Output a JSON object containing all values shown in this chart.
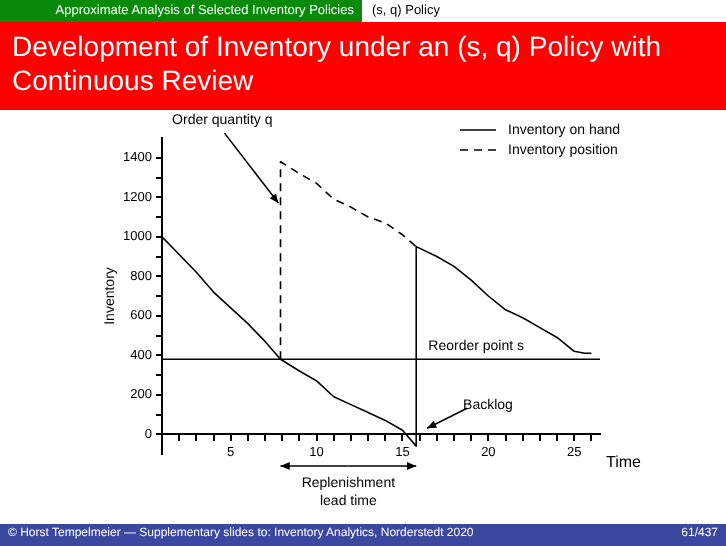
{
  "chart_data": {
    "type": "line",
    "title": "Development of Inventory under an (s, q) Policy with Continuous Review",
    "xlabel": "Time",
    "ylabel": "Inventory",
    "series": [
      {
        "name": "Inventory on hand",
        "color": "#000000",
        "line_style": "solid",
        "x": [
          1,
          2,
          3,
          4,
          5,
          6,
          7,
          7.9,
          9,
          10,
          11,
          12,
          13,
          14,
          15,
          15.8,
          15.8,
          17,
          18,
          19,
          20,
          21,
          22,
          23,
          24,
          25,
          25.6,
          26
        ],
        "values": [
          1000,
          910,
          820,
          720,
          640,
          560,
          470,
          380,
          320,
          270,
          190,
          150,
          110,
          70,
          20,
          -60,
          950,
          900,
          850,
          780,
          700,
          630,
          590,
          540,
          490,
          420,
          410,
          410
        ]
      },
      {
        "name": "Inventory position",
        "color": "#000000",
        "line_style": "dashed",
        "x": [
          7.9,
          7.9,
          9,
          10,
          11,
          12,
          13,
          14,
          15,
          15.8
        ],
        "values": [
          380,
          1380,
          1320,
          1270,
          1190,
          1150,
          1100,
          1070,
          1010,
          950
        ]
      }
    ],
    "xlim": [
      1,
      26.5
    ],
    "ylim": [
      -100,
      1500
    ],
    "xticks": [
      {
        "value": 1,
        "label": null
      },
      {
        "value": 2,
        "label": null
      },
      {
        "value": 3,
        "label": null
      },
      {
        "value": 4,
        "label": null
      },
      5,
      {
        "value": 6,
        "label": null
      },
      {
        "value": 7,
        "label": null
      },
      {
        "value": 8,
        "label": null
      },
      {
        "value": 9,
        "label": null
      },
      10,
      {
        "value": 11,
        "label": null
      },
      {
        "value": 12,
        "label": null
      },
      {
        "value": 13,
        "label": null
      },
      {
        "value": 14,
        "label": null
      },
      15,
      {
        "value": 16,
        "label": null
      },
      {
        "value": 17,
        "label": null
      },
      {
        "value": 18,
        "label": null
      },
      {
        "value": 19,
        "label": null
      },
      20,
      {
        "value": 21,
        "label": null
      },
      {
        "value": 22,
        "label": null
      },
      {
        "value": 23,
        "label": null
      },
      {
        "value": 24,
        "label": null
      },
      25,
      {
        "value": 26,
        "label": null
      }
    ],
    "yticks": [
      0,
      {
        "value": 100,
        "label": null
      },
      200,
      {
        "value": 300,
        "label": null
      },
      400,
      {
        "value": 500,
        "label": null
      },
      600,
      {
        "value": 700,
        "label": null
      },
      800,
      {
        "value": 900,
        "label": null
      },
      1000,
      {
        "value": 1100,
        "label": null
      },
      1200,
      {
        "value": 1300,
        "label": null
      },
      1400
    ],
    "ref_lines": [
      {
        "axis": "y",
        "value": 380,
        "label": "Reorder point s"
      }
    ],
    "annotations": [
      "Approximate Analysis of Selected Inventory Policies",
      "(s, q) Policy",
      {
        "text": "Order quantity q",
        "x": 7.9,
        "y": 1150
      },
      {
        "text": "Backlog",
        "x": 16.2,
        "y": 10
      },
      "Replenishment lead time",
      "© Horst Tempelmeier — Supplementary slides to: Inventory Analytics, Norderstedt 2020",
      "61/437"
    ],
    "grid": false,
    "legend": "top right",
    "marker": "none"
  }
}
